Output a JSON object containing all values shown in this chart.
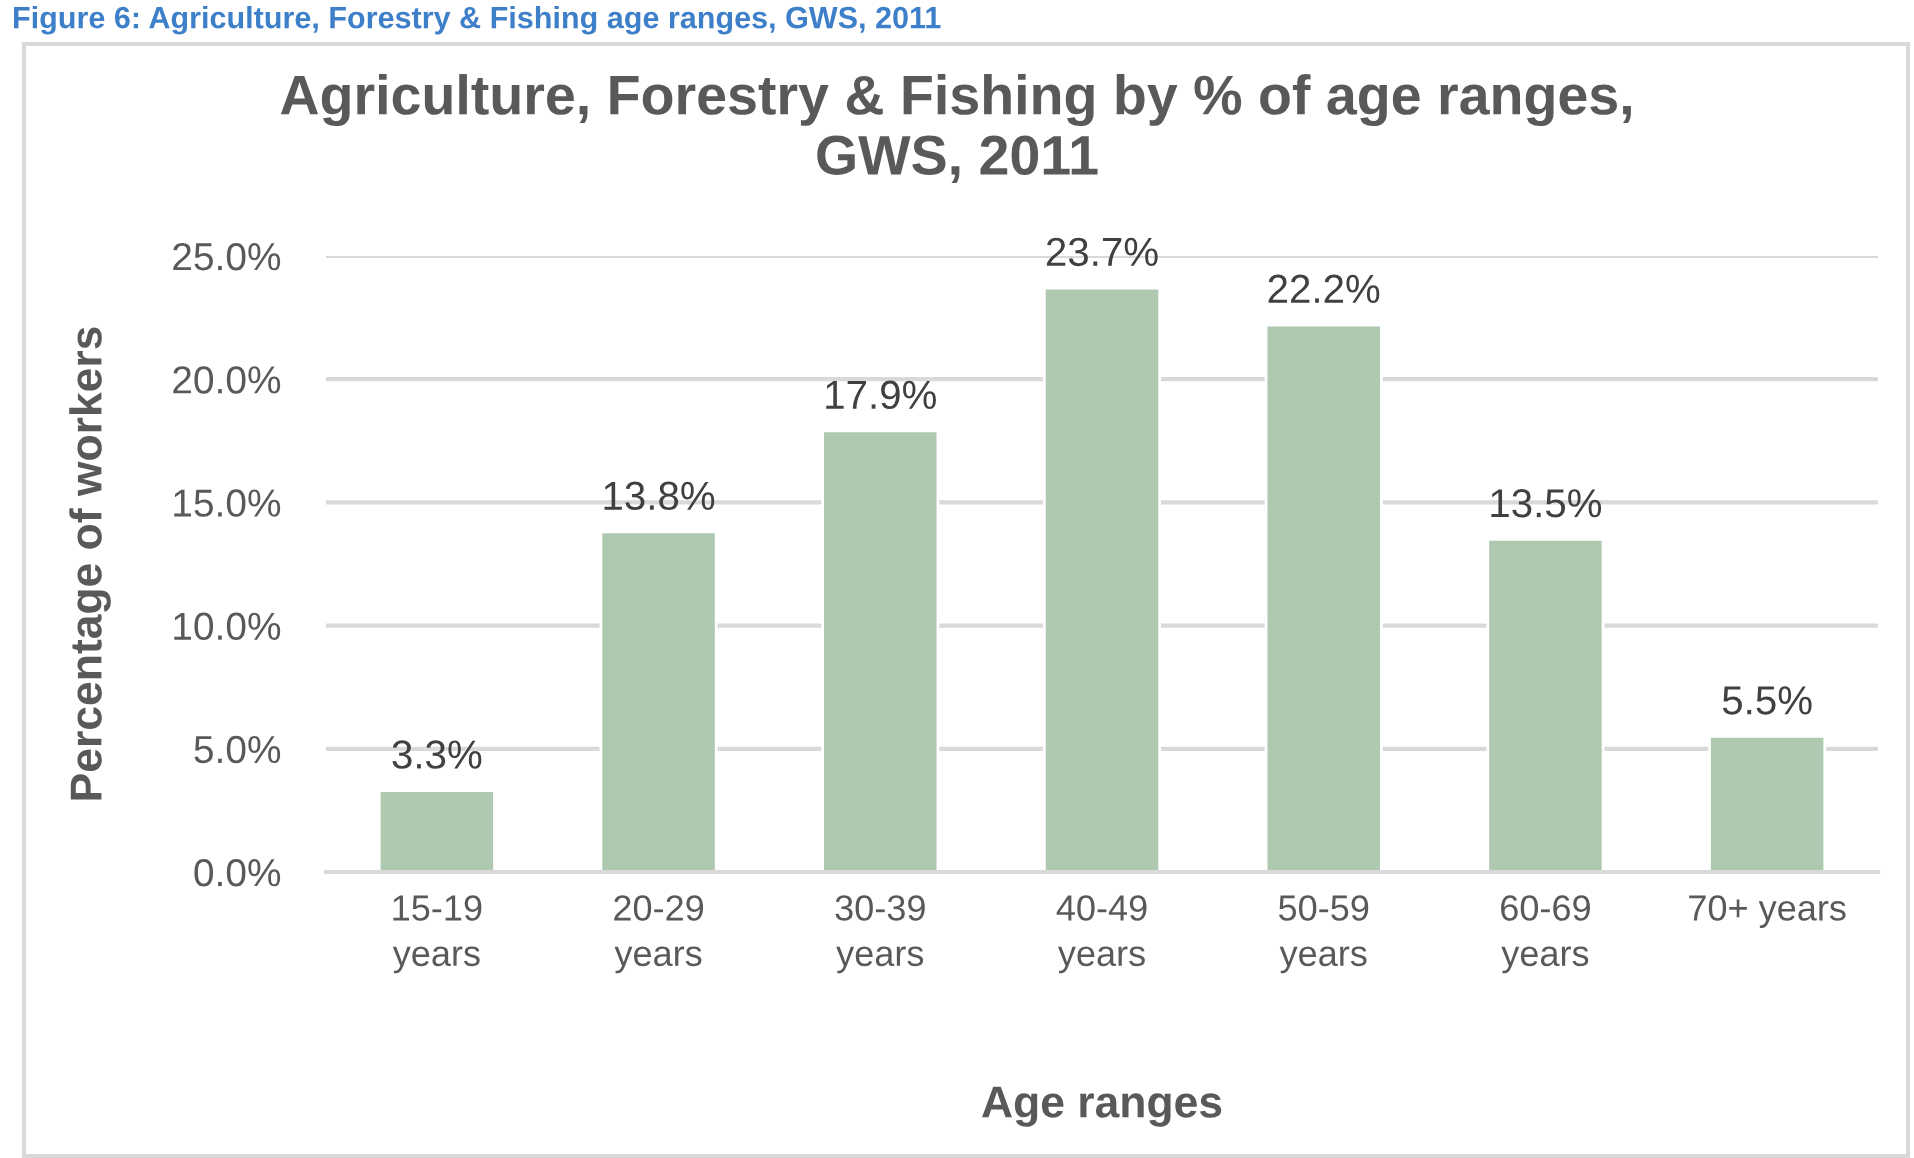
{
  "chart_data": {
    "type": "bar",
    "title": "Agriculture, Forestry & Fishing by % of age ranges, GWS, 2011",
    "xlabel": "Age ranges",
    "ylabel": "Percentage of workers",
    "annotations": [
      "Figure 6: Agriculture, Forestry & Fishing age ranges, GWS, 2011"
    ],
    "categories": [
      "15-19 years",
      "20-29 years",
      "30-39 years",
      "40-49 years",
      "50-59 years",
      "60-69 years",
      "70+ years"
    ],
    "values": [
      3.3,
      13.8,
      17.9,
      23.7,
      22.2,
      13.5,
      5.5
    ],
    "value_labels": [
      "3.3%",
      "13.8%",
      "17.9%",
      "23.7%",
      "22.2%",
      "13.5%",
      "5.5%"
    ],
    "color": "#aec9b0",
    "ylim": [
      0,
      25
    ],
    "yticks": [
      {
        "value": 0,
        "label": "0.0%"
      },
      {
        "value": 5,
        "label": "5.0%"
      },
      {
        "value": 10,
        "label": "10.0%"
      },
      {
        "value": 15,
        "label": "15.0%"
      },
      {
        "value": 20,
        "label": "20.0%"
      },
      {
        "value": 25,
        "label": "25.0%"
      }
    ],
    "grid": "y"
  }
}
